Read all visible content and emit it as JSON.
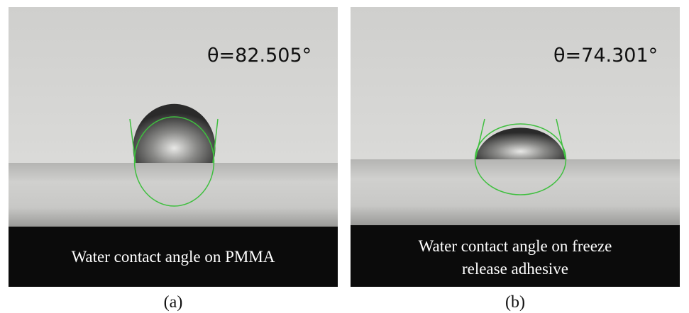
{
  "panels": [
    {
      "angle": "θ=82.505°",
      "caption": [
        "Water contact angle on PMMA"
      ],
      "label": "(a)"
    },
    {
      "angle": "θ=74.301°",
      "caption": [
        "Water contact angle on freeze",
        "release adhesive"
      ],
      "label": "(b)"
    }
  ]
}
